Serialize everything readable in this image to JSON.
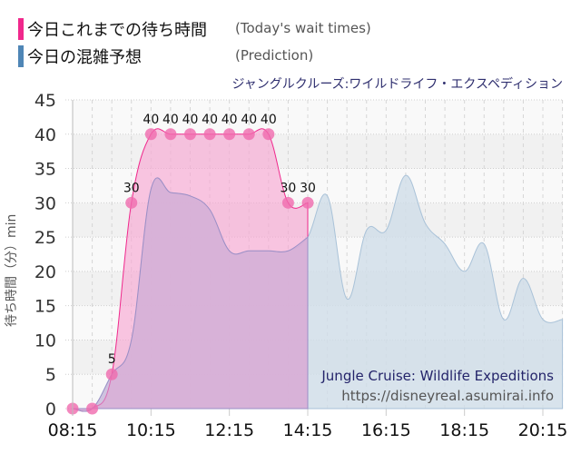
{
  "legend": {
    "today": {
      "label_jp": "今日これまでの待ち時間",
      "label_en": "(Today's wait times)",
      "color": "#f0288c"
    },
    "prediction": {
      "label_jp": "今日の混雑予想",
      "label_en": "(Prediction)",
      "color": "#4f86b6"
    }
  },
  "subtitle": "ジャングルクルーズ:ワイルドライフ・エクスペディション",
  "axis": {
    "ylabel": "待ち時間（分）min",
    "yticks": [
      "0",
      "5",
      "10",
      "15",
      "20",
      "25",
      "30",
      "35",
      "40",
      "45"
    ],
    "xticks": [
      "08:15",
      "10:15",
      "12:15",
      "14:15",
      "16:15",
      "18:15",
      "20:15"
    ]
  },
  "watermark": {
    "title": "Jungle Cruise: Wildlife Expeditions",
    "url": "https://disneyreal.asumirai.info"
  },
  "chart_data": {
    "type": "area",
    "title": "ジャングルクルーズ:ワイルドライフ・エクスペディション",
    "xlabel": "",
    "ylabel": "待ち時間（分）min",
    "ylim": [
      0,
      45
    ],
    "grid": true,
    "legend_position": "top-left",
    "x": [
      "08:15",
      "08:45",
      "09:15",
      "09:45",
      "10:15",
      "10:45",
      "11:15",
      "11:45",
      "12:15",
      "12:45",
      "13:15",
      "13:45",
      "14:15",
      "14:45",
      "15:15",
      "15:45",
      "16:15",
      "16:45",
      "17:15",
      "17:45",
      "18:15",
      "18:45",
      "19:15",
      "19:45",
      "20:15",
      "20:45"
    ],
    "series": [
      {
        "name": "今日これまでの待ち時間 (Today's wait times)",
        "color": "#f0288c",
        "values": [
          0,
          0,
          5,
          30,
          40,
          40,
          40,
          40,
          40,
          40,
          40,
          30,
          30,
          null,
          null,
          null,
          null,
          null,
          null,
          null,
          null,
          null,
          null,
          null,
          null,
          null
        ]
      },
      {
        "name": "今日の混雑予想 (Prediction)",
        "color": "#4f86b6",
        "values": [
          0,
          0,
          5,
          10,
          32,
          31.5,
          31,
          29,
          23,
          23,
          23,
          23,
          25,
          31,
          16,
          26,
          26,
          34,
          27,
          24,
          20,
          24,
          13,
          19,
          13,
          13
        ]
      }
    ],
    "data_labels": [
      0,
      0,
      5,
      30,
      40,
      40,
      40,
      40,
      40,
      40,
      40,
      30,
      30
    ]
  }
}
